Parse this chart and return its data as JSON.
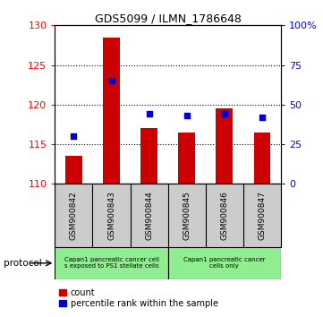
{
  "title": "GDS5099 / ILMN_1786648",
  "samples": [
    "GSM900842",
    "GSM900843",
    "GSM900844",
    "GSM900845",
    "GSM900846",
    "GSM900847"
  ],
  "count_values": [
    113.5,
    128.5,
    117.0,
    116.5,
    119.5,
    116.5
  ],
  "percentile_values": [
    30,
    65,
    44,
    43,
    44,
    42
  ],
  "ylim_left": [
    110,
    130
  ],
  "ylim_right": [
    0,
    100
  ],
  "yticks_left": [
    110,
    115,
    120,
    125,
    130
  ],
  "yticks_right": [
    0,
    25,
    50,
    75,
    100
  ],
  "ytick_labels_right": [
    "0",
    "25",
    "50",
    "75",
    "100%"
  ],
  "bar_color": "#cc0000",
  "percentile_color": "#0000cc",
  "background_sample": "#cccccc",
  "protocol_group1_color": "#90ee90",
  "protocol_group1_text": "Capan1 pancreatic cancer cell\ns exposed to PS1 stellate cells",
  "protocol_group2_color": "#90ee90",
  "protocol_group2_text": "Capan1 pancreatic cancer\ncells only",
  "legend_count_label": "count",
  "legend_percentile_label": "percentile rank within the sample",
  "protocol_label": "protocol"
}
